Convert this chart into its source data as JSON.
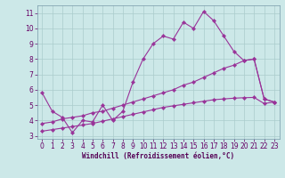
{
  "bg_color": "#cce8e8",
  "grid_color": "#aacccc",
  "line_color": "#993399",
  "marker_color": "#993399",
  "xlabel": "Windchill (Refroidissement éolien,°C)",
  "ylim": [
    2.8,
    11.5
  ],
  "xlim": [
    -0.5,
    23.5
  ],
  "yticks": [
    3,
    4,
    5,
    6,
    7,
    8,
    9,
    10,
    11
  ],
  "xticks": [
    0,
    1,
    2,
    3,
    4,
    5,
    6,
    7,
    8,
    9,
    10,
    11,
    12,
    13,
    14,
    15,
    16,
    17,
    18,
    19,
    20,
    21,
    22,
    23
  ],
  "curve1_x": [
    0,
    1,
    2,
    3,
    4,
    5,
    6,
    7,
    8,
    9,
    10,
    11,
    12,
    13,
    14,
    15,
    16,
    17,
    18,
    19,
    20,
    21,
    22,
    23
  ],
  "curve1_y": [
    5.8,
    4.6,
    4.2,
    3.2,
    4.0,
    3.9,
    5.0,
    4.0,
    4.6,
    6.5,
    8.0,
    9.0,
    9.5,
    9.3,
    10.4,
    10.0,
    11.1,
    10.5,
    9.5,
    8.5,
    7.9,
    8.0,
    5.4,
    5.2
  ],
  "curve2_x": [
    0,
    1,
    2,
    3,
    4,
    5,
    6,
    7,
    8,
    9,
    10,
    11,
    12,
    13,
    14,
    15,
    16,
    17,
    18,
    19,
    20,
    21,
    22,
    23
  ],
  "curve2_y": [
    3.8,
    3.9,
    4.1,
    4.2,
    4.3,
    4.5,
    4.6,
    4.8,
    5.0,
    5.2,
    5.4,
    5.6,
    5.8,
    6.0,
    6.3,
    6.5,
    6.8,
    7.1,
    7.4,
    7.6,
    7.9,
    8.0,
    5.4,
    5.2
  ],
  "curve3_x": [
    0,
    1,
    2,
    3,
    4,
    5,
    6,
    7,
    8,
    9,
    10,
    11,
    12,
    13,
    14,
    15,
    16,
    17,
    18,
    19,
    20,
    21,
    22,
    23
  ],
  "curve3_y": [
    3.3,
    3.4,
    3.5,
    3.6,
    3.7,
    3.8,
    3.95,
    4.1,
    4.25,
    4.4,
    4.55,
    4.7,
    4.85,
    4.95,
    5.05,
    5.15,
    5.25,
    5.35,
    5.4,
    5.45,
    5.48,
    5.5,
    5.1,
    5.2
  ]
}
